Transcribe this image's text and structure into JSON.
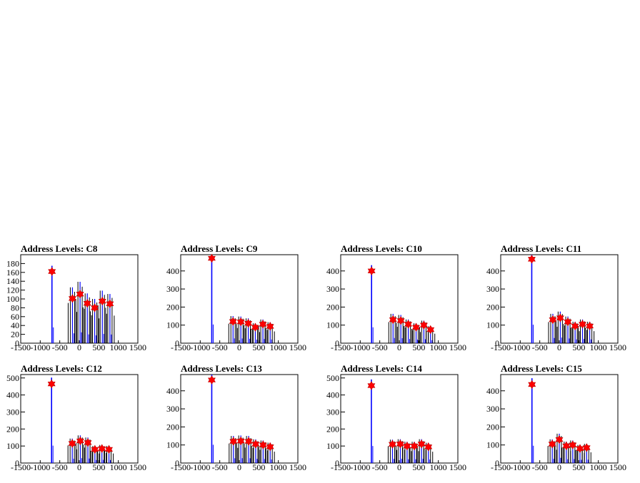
{
  "chart_data": [
    {
      "type": "histogram",
      "title": "Address Levels: C8",
      "xlim": [
        -1500,
        1500
      ],
      "xticks": [
        -1500,
        -1000,
        -500,
        0,
        500,
        1000,
        1500
      ],
      "ylim": [
        0,
        200
      ],
      "yticks": [
        0,
        20,
        40,
        60,
        80,
        100,
        120,
        140,
        160,
        180
      ],
      "peaks": [
        {
          "x": -700,
          "y": 162
        },
        {
          "x": -175,
          "y": 101
        },
        {
          "x": 20,
          "y": 111
        },
        {
          "x": 205,
          "y": 90
        },
        {
          "x": 395,
          "y": 80
        },
        {
          "x": 590,
          "y": 95
        },
        {
          "x": 785,
          "y": 89
        }
      ]
    },
    {
      "type": "histogram",
      "title": "Address Levels: C9",
      "xlim": [
        -1500,
        1500
      ],
      "xticks": [
        -1500,
        -1000,
        -500,
        0,
        500,
        1000,
        1500
      ],
      "ylim": [
        0,
        490
      ],
      "yticks": [
        0,
        100,
        200,
        300,
        400
      ],
      "peaks": [
        {
          "x": -705,
          "y": 470
        },
        {
          "x": -160,
          "y": 120
        },
        {
          "x": 40,
          "y": 118
        },
        {
          "x": 230,
          "y": 110
        },
        {
          "x": 410,
          "y": 88
        },
        {
          "x": 605,
          "y": 105
        },
        {
          "x": 790,
          "y": 93
        }
      ]
    },
    {
      "type": "histogram",
      "title": "Address Levels: C10",
      "xlim": [
        -1500,
        1500
      ],
      "xticks": [
        -1500,
        -1000,
        -500,
        0,
        500,
        1000,
        1500
      ],
      "ylim": [
        0,
        490
      ],
      "yticks": [
        0,
        100,
        200,
        300,
        400
      ],
      "peaks": [
        {
          "x": -710,
          "y": 400
        },
        {
          "x": -160,
          "y": 130
        },
        {
          "x": 40,
          "y": 125
        },
        {
          "x": 230,
          "y": 105
        },
        {
          "x": 430,
          "y": 88
        },
        {
          "x": 630,
          "y": 100
        },
        {
          "x": 800,
          "y": 75
        }
      ]
    },
    {
      "type": "histogram",
      "title": "Address Levels: C11",
      "xlim": [
        -1500,
        1500
      ],
      "xticks": [
        -1500,
        -1000,
        -500,
        0,
        500,
        1000,
        1500
      ],
      "ylim": [
        0,
        490
      ],
      "yticks": [
        0,
        100,
        200,
        300,
        400
      ],
      "peaks": [
        {
          "x": -705,
          "y": 465
        },
        {
          "x": -165,
          "y": 130
        },
        {
          "x": 25,
          "y": 140
        },
        {
          "x": 220,
          "y": 118
        },
        {
          "x": 405,
          "y": 95
        },
        {
          "x": 595,
          "y": 105
        },
        {
          "x": 780,
          "y": 95
        }
      ]
    },
    {
      "type": "histogram",
      "title": "Address Levels: C12",
      "xlim": [
        -1500,
        1500
      ],
      "xticks": [
        -1500,
        -1000,
        -500,
        0,
        500,
        1000,
        1500
      ],
      "ylim": [
        0,
        520
      ],
      "yticks": [
        0,
        100,
        200,
        300,
        400,
        500
      ],
      "peaks": [
        {
          "x": -710,
          "y": 465
        },
        {
          "x": -180,
          "y": 115
        },
        {
          "x": 25,
          "y": 130
        },
        {
          "x": 220,
          "y": 120
        },
        {
          "x": 400,
          "y": 80
        },
        {
          "x": 580,
          "y": 85
        },
        {
          "x": 760,
          "y": 80
        }
      ]
    },
    {
      "type": "histogram",
      "title": "Address Levels: C13",
      "xlim": [
        -1500,
        1500
      ],
      "xticks": [
        -1500,
        -1000,
        -500,
        0,
        500,
        1000,
        1500
      ],
      "ylim": [
        0,
        490
      ],
      "yticks": [
        0,
        100,
        200,
        300,
        400
      ],
      "peaks": [
        {
          "x": -705,
          "y": 460
        },
        {
          "x": -150,
          "y": 120
        },
        {
          "x": 40,
          "y": 122
        },
        {
          "x": 240,
          "y": 120
        },
        {
          "x": 420,
          "y": 105
        },
        {
          "x": 610,
          "y": 100
        },
        {
          "x": 790,
          "y": 90
        }
      ]
    },
    {
      "type": "histogram",
      "title": "Address Levels: C14",
      "xlim": [
        -1500,
        1500
      ],
      "xticks": [
        -1500,
        -1000,
        -500,
        0,
        500,
        1000,
        1500
      ],
      "ylim": [
        0,
        520
      ],
      "yticks": [
        0,
        100,
        200,
        300,
        400,
        500
      ],
      "peaks": [
        {
          "x": -715,
          "y": 455
        },
        {
          "x": -175,
          "y": 110
        },
        {
          "x": 25,
          "y": 112
        },
        {
          "x": 200,
          "y": 100
        },
        {
          "x": 385,
          "y": 100
        },
        {
          "x": 570,
          "y": 112
        },
        {
          "x": 745,
          "y": 95
        }
      ]
    },
    {
      "type": "histogram",
      "title": "Address Levels: C15",
      "xlim": [
        -1500,
        1500
      ],
      "xticks": [
        -1500,
        -1000,
        -500,
        0,
        500,
        1000,
        1500
      ],
      "ylim": [
        0,
        490
      ],
      "yticks": [
        0,
        100,
        200,
        300,
        400
      ],
      "peaks": [
        {
          "x": -700,
          "y": 435
        },
        {
          "x": -180,
          "y": 105
        },
        {
          "x": 0,
          "y": 130
        },
        {
          "x": 180,
          "y": 95
        },
        {
          "x": 345,
          "y": 100
        },
        {
          "x": 530,
          "y": 80
        },
        {
          "x": 700,
          "y": 85
        }
      ]
    }
  ]
}
